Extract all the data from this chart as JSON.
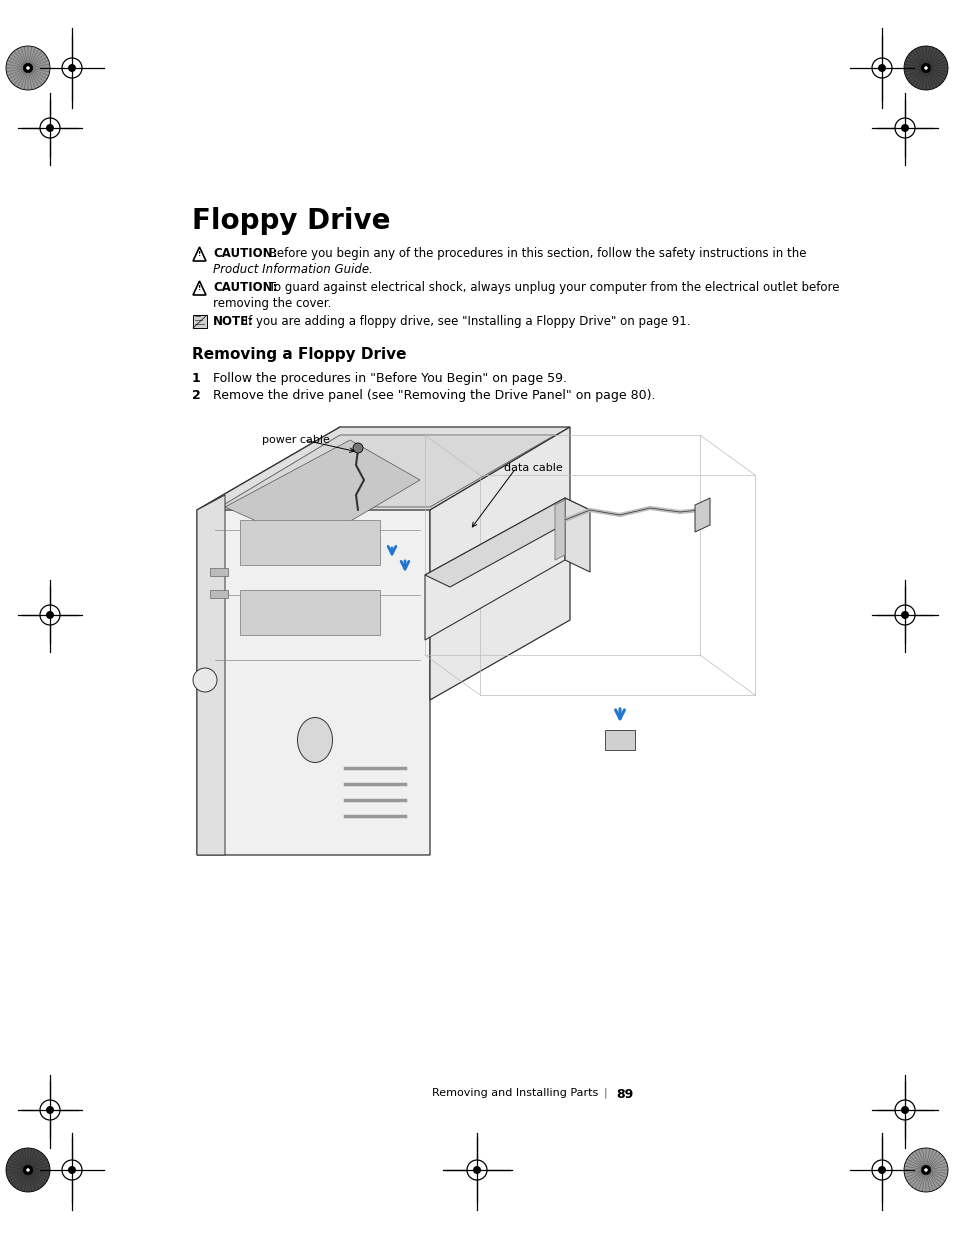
{
  "title": "Floppy Drive",
  "caution1_bold": "CAUTION:",
  "caution1_rest": " Before you begin any of the procedures in this section, follow the safety instructions in the",
  "caution1_italic": "Product Information Guide.",
  "caution2_bold": "CAUTION:",
  "caution2_rest": " To guard against electrical shock, always unplug your computer from the electrical outlet before",
  "caution2_line2": "removing the cover.",
  "note_bold": "NOTE:",
  "note_rest": " If you are adding a floppy drive, see \"Installing a Floppy Drive\" on page 91.",
  "section_title": "Removing a Floppy Drive",
  "step1": "Follow the procedures in \"Before You Begin\" on page 59.",
  "step2": "Remove the drive panel (see \"Removing the Drive Panel\" on page 80).",
  "label_power_cable": "power cable",
  "label_data_cable": "data cable",
  "footer_text": "Removing and Installing Parts",
  "page_number": "89",
  "bg_color": "#ffffff",
  "text_color": "#000000",
  "blue_color": "#2277cc",
  "gray_light": "#e8e8e8",
  "gray_mid": "#cccccc",
  "gray_dark": "#888888",
  "line_color": "#444444"
}
